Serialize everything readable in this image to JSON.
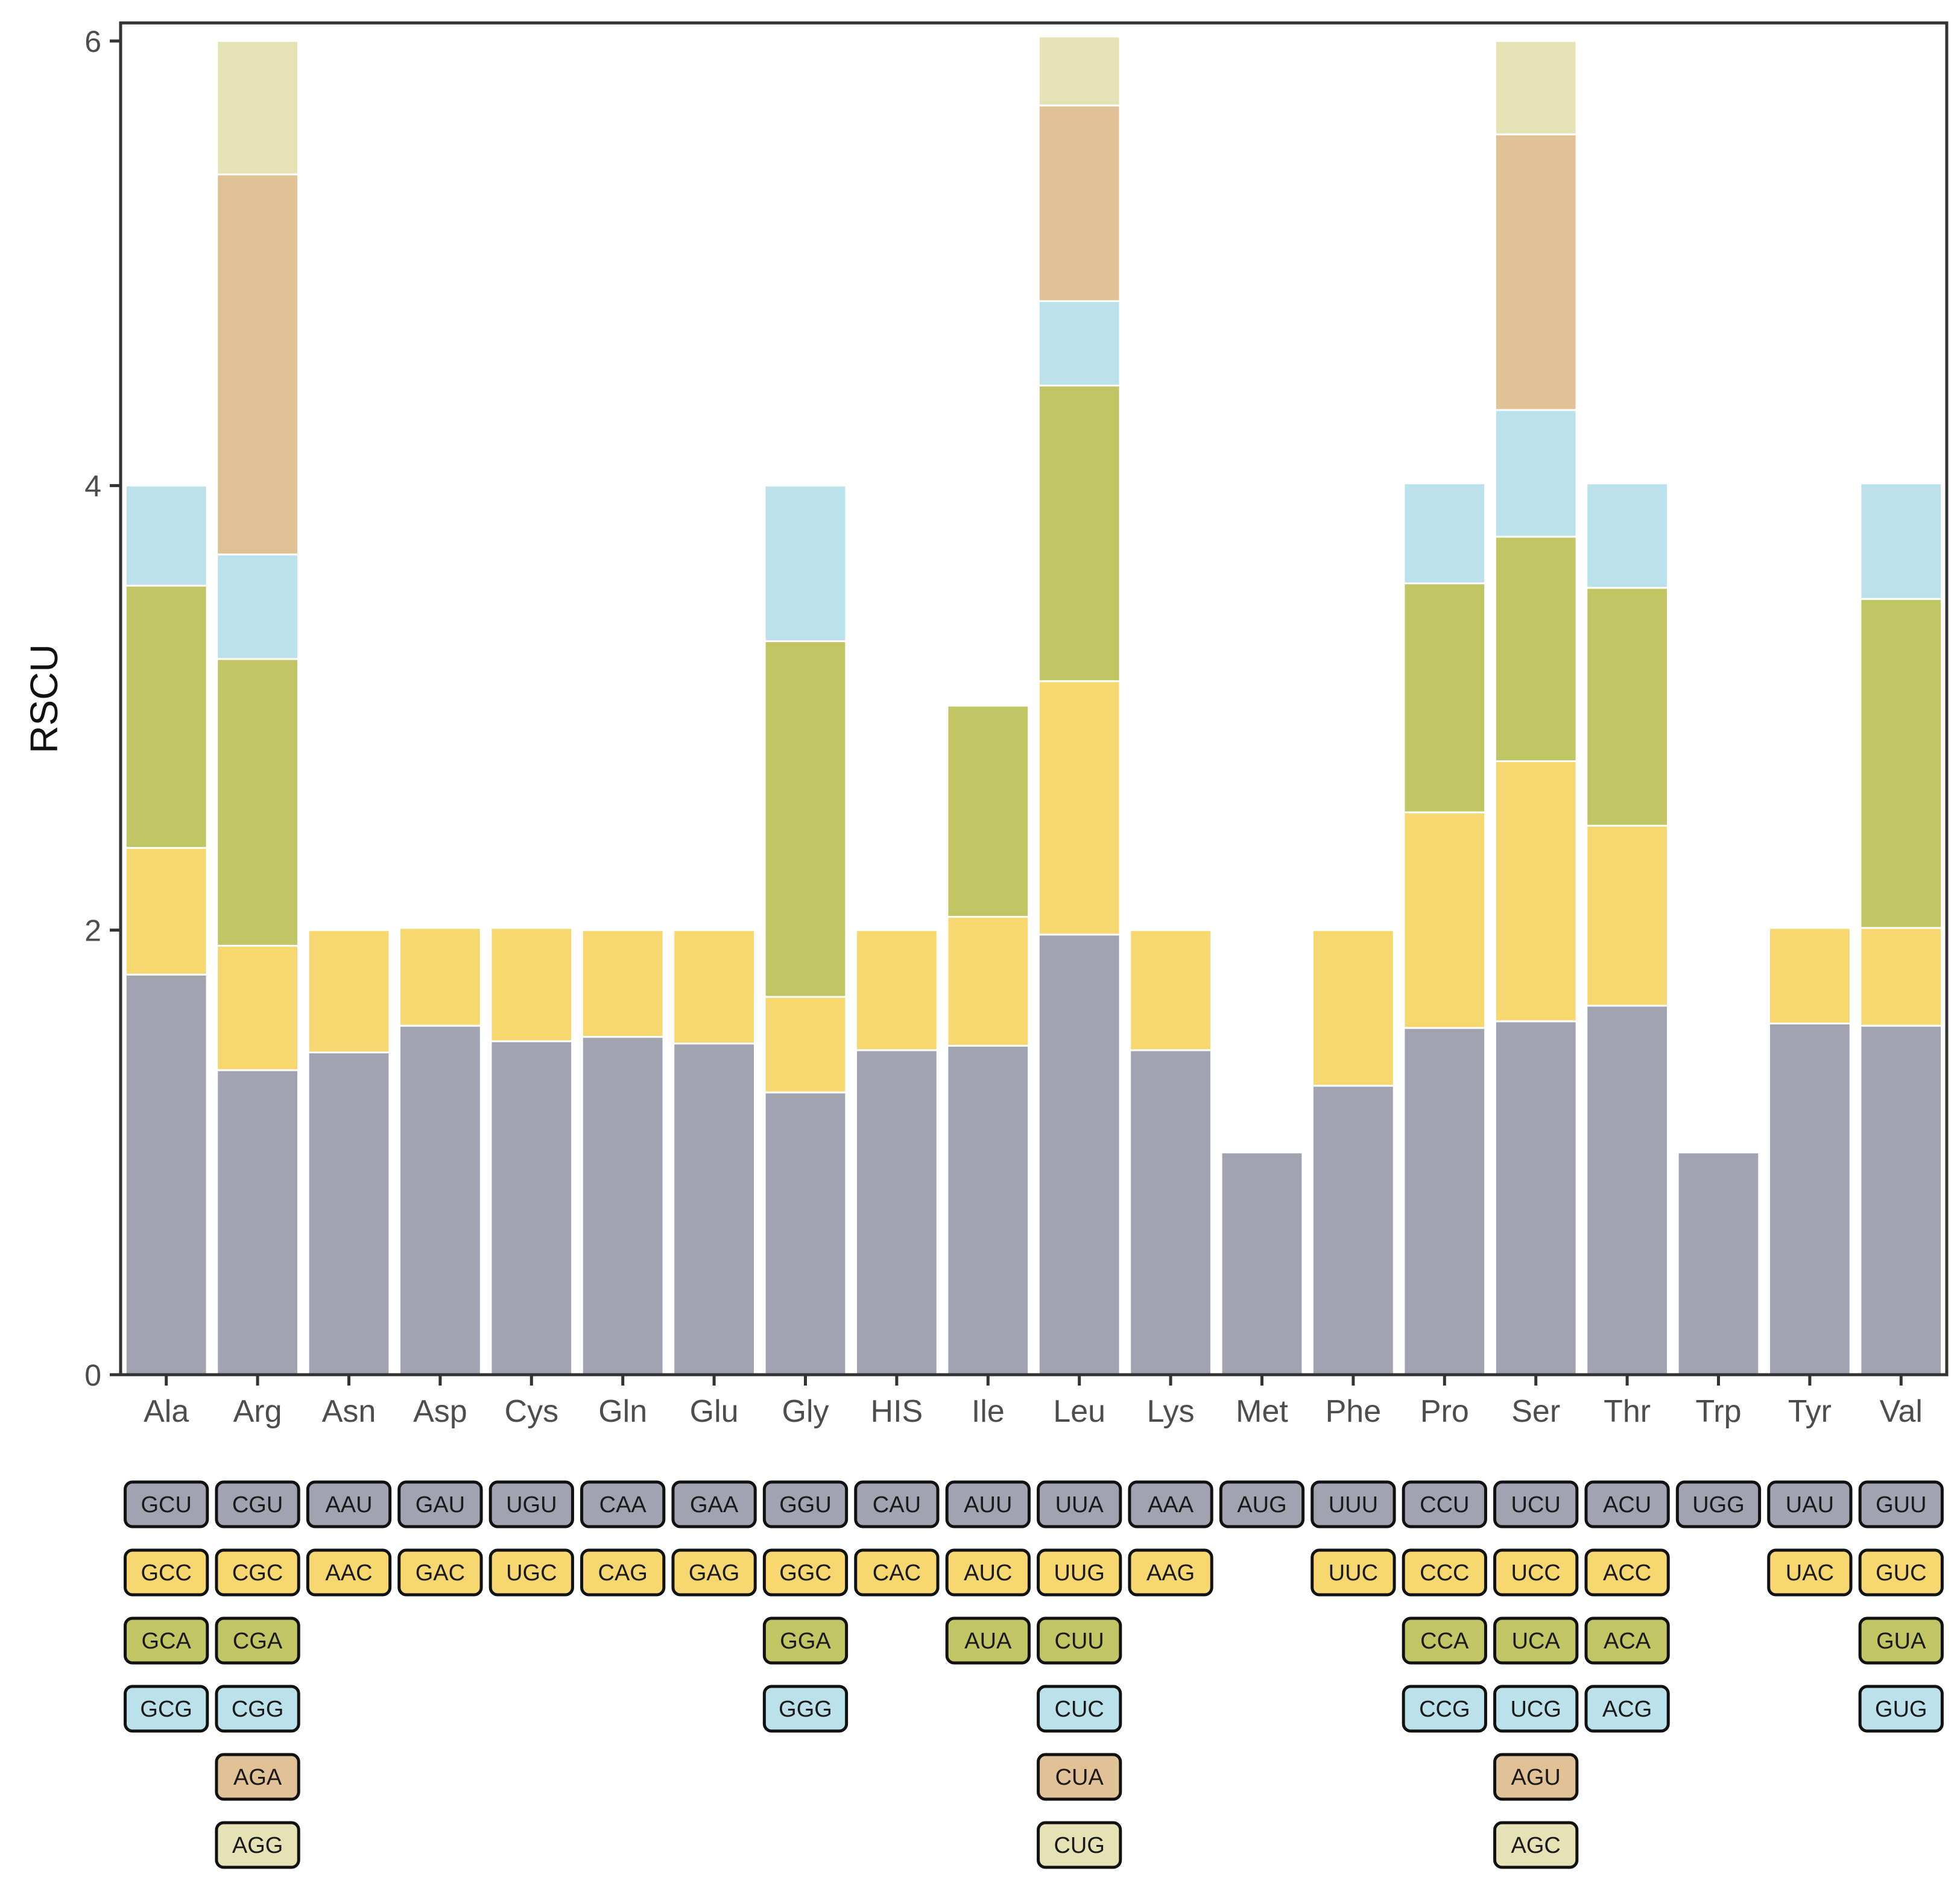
{
  "chart_data": {
    "type": "bar",
    "stacked": true,
    "ylabel": "RSCU",
    "xlabel": "",
    "ylim": [
      0,
      6
    ],
    "yticks": [
      0,
      2,
      4,
      6
    ],
    "categories": [
      "Ala",
      "Arg",
      "Asn",
      "Asp",
      "Cys",
      "Gln",
      "Glu",
      "Gly",
      "HIS",
      "Ile",
      "Leu",
      "Lys",
      "Met",
      "Phe",
      "Pro",
      "Ser",
      "Thr",
      "Trp",
      "Tyr",
      "Val"
    ],
    "layer_colors": [
      "#a1a3b0",
      "#f7d870",
      "#c2c563",
      "#bbe2ea",
      "#e1c196",
      "#e6e2b5"
    ],
    "stacks": [
      [
        {
          "codon": "GCU",
          "value": 1.8
        },
        {
          "codon": "GCC",
          "value": 0.57
        },
        {
          "codon": "GCA",
          "value": 1.18
        },
        {
          "codon": "GCG",
          "value": 0.45
        }
      ],
      [
        {
          "codon": "CGU",
          "value": 1.37
        },
        {
          "codon": "CGC",
          "value": 0.56
        },
        {
          "codon": "CGA",
          "value": 1.29
        },
        {
          "codon": "CGG",
          "value": 0.47
        },
        {
          "codon": "AGA",
          "value": 1.71
        },
        {
          "codon": "AGG",
          "value": 0.6
        }
      ],
      [
        {
          "codon": "AAU",
          "value": 1.45
        },
        {
          "codon": "AAC",
          "value": 0.55
        }
      ],
      [
        {
          "codon": "GAU",
          "value": 1.57
        },
        {
          "codon": "GAC",
          "value": 0.44
        }
      ],
      [
        {
          "codon": "UGU",
          "value": 1.5
        },
        {
          "codon": "UGC",
          "value": 0.51
        }
      ],
      [
        {
          "codon": "CAA",
          "value": 1.52
        },
        {
          "codon": "CAG",
          "value": 0.48
        }
      ],
      [
        {
          "codon": "GAA",
          "value": 1.49
        },
        {
          "codon": "GAG",
          "value": 0.51
        }
      ],
      [
        {
          "codon": "GGU",
          "value": 1.27
        },
        {
          "codon": "GGC",
          "value": 0.43
        },
        {
          "codon": "GGA",
          "value": 1.6
        },
        {
          "codon": "GGG",
          "value": 0.7
        }
      ],
      [
        {
          "codon": "CAU",
          "value": 1.46
        },
        {
          "codon": "CAC",
          "value": 0.54
        }
      ],
      [
        {
          "codon": "AUU",
          "value": 1.48
        },
        {
          "codon": "AUC",
          "value": 0.58
        },
        {
          "codon": "AUA",
          "value": 0.95
        }
      ],
      [
        {
          "codon": "UUA",
          "value": 1.98
        },
        {
          "codon": "UUG",
          "value": 1.14
        },
        {
          "codon": "CUU",
          "value": 1.33
        },
        {
          "codon": "CUC",
          "value": 0.38
        },
        {
          "codon": "CUA",
          "value": 0.88
        },
        {
          "codon": "CUG",
          "value": 0.31
        }
      ],
      [
        {
          "codon": "AAA",
          "value": 1.46
        },
        {
          "codon": "AAG",
          "value": 0.54
        }
      ],
      [
        {
          "codon": "AUG",
          "value": 1.0
        }
      ],
      [
        {
          "codon": "UUU",
          "value": 1.3
        },
        {
          "codon": "UUC",
          "value": 0.7
        }
      ],
      [
        {
          "codon": "CCU",
          "value": 1.56
        },
        {
          "codon": "CCC",
          "value": 0.97
        },
        {
          "codon": "CCA",
          "value": 1.03
        },
        {
          "codon": "CCG",
          "value": 0.45
        }
      ],
      [
        {
          "codon": "UCU",
          "value": 1.59
        },
        {
          "codon": "UCC",
          "value": 1.17
        },
        {
          "codon": "UCA",
          "value": 1.01
        },
        {
          "codon": "UCG",
          "value": 0.57
        },
        {
          "codon": "AGU",
          "value": 1.24
        },
        {
          "codon": "AGC",
          "value": 0.42
        }
      ],
      [
        {
          "codon": "ACU",
          "value": 1.66
        },
        {
          "codon": "ACC",
          "value": 0.81
        },
        {
          "codon": "ACA",
          "value": 1.07
        },
        {
          "codon": "ACG",
          "value": 0.47
        }
      ],
      [
        {
          "codon": "UGG",
          "value": 1.0
        }
      ],
      [
        {
          "codon": "UAU",
          "value": 1.58
        },
        {
          "codon": "UAC",
          "value": 0.43
        }
      ],
      [
        {
          "codon": "GUU",
          "value": 1.57
        },
        {
          "codon": "GUC",
          "value": 0.44
        },
        {
          "codon": "GUA",
          "value": 1.48
        },
        {
          "codon": "GUG",
          "value": 0.52
        }
      ]
    ]
  }
}
